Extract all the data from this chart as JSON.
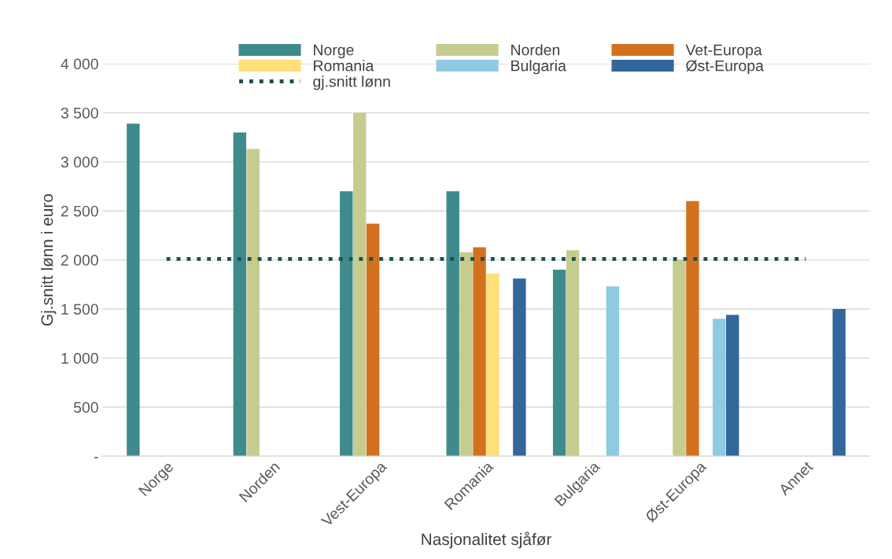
{
  "chart_data": {
    "type": "bar",
    "xlabel": "Nasjonalitet sjåfør",
    "ylabel": "Gj.snitt lønn i euro",
    "categories": [
      "Norge",
      "Norden",
      "Vest-Europa",
      "Romania",
      "Bulgaria",
      "Øst-Europa",
      "Annet"
    ],
    "series": [
      {
        "name": "Norge",
        "color": "#3f8a8c",
        "values": [
          3390,
          3300,
          2700,
          2700,
          1900,
          null,
          null
        ]
      },
      {
        "name": "Norden",
        "color": "#c5cc8e",
        "values": [
          null,
          3130,
          3500,
          2080,
          2100,
          2000,
          null
        ]
      },
      {
        "name": "Vet-Europa",
        "color": "#d4711e",
        "values": [
          null,
          null,
          2370,
          2130,
          null,
          2600,
          null
        ]
      },
      {
        "name": "Romania",
        "color": "#ffe07a",
        "values": [
          null,
          null,
          null,
          1860,
          null,
          null,
          null
        ]
      },
      {
        "name": "Bulgaria",
        "color": "#8ecae0",
        "values": [
          null,
          null,
          null,
          null,
          1730,
          1400,
          null
        ]
      },
      {
        "name": "Øst-Europa",
        "color": "#33669a",
        "values": [
          null,
          null,
          null,
          1810,
          null,
          1440,
          1500
        ]
      },
      {
        "name": "gj.snitt lønn",
        "type": "line",
        "color": "#1f4e4e",
        "line_style": "dotted",
        "values": [
          2010,
          2010,
          2010,
          2010,
          2010,
          2010,
          2010
        ]
      }
    ],
    "ylim": [
      0,
      4000
    ],
    "yticks": [
      {
        "value": 0,
        "label": "-"
      },
      {
        "value": 500,
        "label": "500"
      },
      {
        "value": 1000,
        "label": "1 000"
      },
      {
        "value": 1500,
        "label": "1 500"
      },
      {
        "value": 2000,
        "label": "2 000"
      },
      {
        "value": 2500,
        "label": "2 500"
      },
      {
        "value": 3000,
        "label": "3 000"
      },
      {
        "value": 3500,
        "label": "3 500"
      },
      {
        "value": 4000,
        "label": "4 000"
      }
    ],
    "grid": "y",
    "legend": "top"
  }
}
